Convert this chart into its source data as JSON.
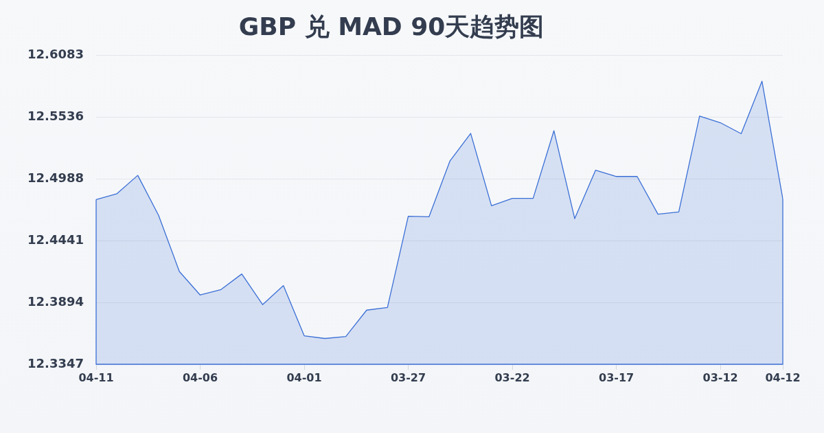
{
  "chart_data": {
    "type": "area",
    "title": "GBP 兑 MAD 90天趋势图",
    "categories": [
      "04-11",
      null,
      null,
      null,
      null,
      "04-06",
      null,
      null,
      null,
      null,
      "04-01",
      null,
      null,
      null,
      null,
      "03-27",
      null,
      null,
      null,
      null,
      "03-22",
      null,
      null,
      null,
      null,
      "03-17",
      null,
      null,
      null,
      null,
      "03-12",
      null,
      null,
      "04-12"
    ],
    "series": [
      {
        "color": "#3a6fd6",
        "values": [
          12.4805,
          12.4857,
          12.5019,
          12.4665,
          12.4168,
          12.396,
          12.4008,
          12.4146,
          12.3875,
          12.4043,
          12.3599,
          12.3575,
          12.3593,
          12.3826,
          12.385,
          12.4657,
          12.4653,
          12.5145,
          12.539,
          12.475,
          12.4815,
          12.4815,
          12.5414,
          12.4636,
          12.5064,
          12.5009,
          12.5009,
          12.4675,
          12.4695,
          12.5544,
          12.5485,
          12.5388,
          12.5852,
          12.4811
        ]
      }
    ],
    "ylim": [
      12.3347,
      12.6083
    ],
    "yticks": [
      12.3347,
      12.3894,
      12.4441,
      12.4988,
      12.5536,
      12.6083
    ],
    "grid": "y"
  }
}
